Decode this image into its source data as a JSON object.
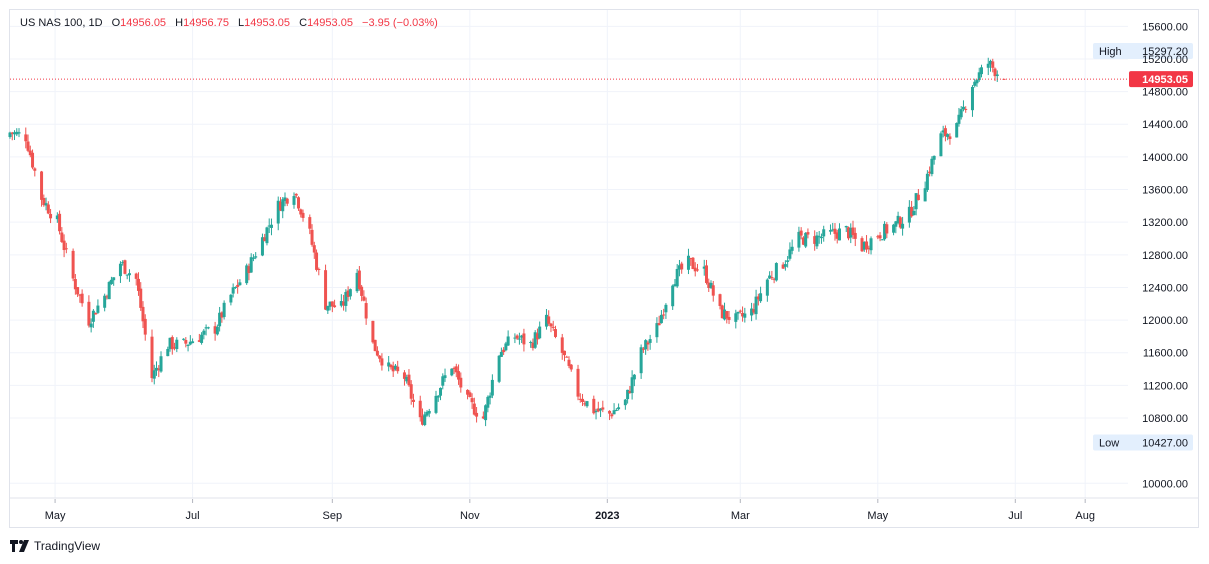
{
  "header": {
    "symbol": "US NAS 100, 1D",
    "open_label": "O",
    "open": "14956.05",
    "high_label": "H",
    "high": "14956.75",
    "low_label": "L",
    "low": "14953.05",
    "close_label": "C",
    "close": "14953.05",
    "change": "−3.95 (−0.03%)"
  },
  "price_axis": {
    "ticks": [
      "15600.00",
      "15200.00",
      "14800.00",
      "14400.00",
      "14000.00",
      "13600.00",
      "13200.00",
      "12800.00",
      "12400.00",
      "12000.00",
      "11600.00",
      "11200.00",
      "10800.00",
      "10000.00"
    ],
    "high_label": "High",
    "high_value": "15297.20",
    "low_label": "Low",
    "low_value": "10427.00",
    "last_price": "14953.05"
  },
  "time_axis": {
    "labels": [
      "May",
      "Jul",
      "Sep",
      "Nov",
      "2023",
      "Mar",
      "May",
      "Jul",
      "Aug"
    ]
  },
  "branding": {
    "logo_text": "TradingView"
  },
  "colors": {
    "up": "#26a69a",
    "down": "#ef5350",
    "last_price": "#f23645",
    "grid": "#f0f3fa"
  },
  "chart_data": {
    "type": "candlestick",
    "title": "US NAS 100, 1D",
    "ylim": [
      10000,
      15700
    ],
    "x_range": [
      "2022-04-11",
      "2023-08-20"
    ],
    "grid": true,
    "last": 14953.05,
    "high": 15297.2,
    "low": 10427.0,
    "keypoints": [
      [
        "2022-04-11",
        14300
      ],
      [
        "2022-04-18",
        14250
      ],
      [
        "2022-04-25",
        13500
      ],
      [
        "2022-05-02",
        13200
      ],
      [
        "2022-05-09",
        12500
      ],
      [
        "2022-05-16",
        12000
      ],
      [
        "2022-05-23",
        12300
      ],
      [
        "2022-05-30",
        12700
      ],
      [
        "2022-06-06",
        12500
      ],
      [
        "2022-06-13",
        11300
      ],
      [
        "2022-06-20",
        11700
      ],
      [
        "2022-06-27",
        11700
      ],
      [
        "2022-07-04",
        11800
      ],
      [
        "2022-07-11",
        11900
      ],
      [
        "2022-07-18",
        12300
      ],
      [
        "2022-07-25",
        12600
      ],
      [
        "2022-08-01",
        13000
      ],
      [
        "2022-08-08",
        13400
      ],
      [
        "2022-08-15",
        13600
      ],
      [
        "2022-08-22",
        13050
      ],
      [
        "2022-08-29",
        12200
      ],
      [
        "2022-09-05",
        12150
      ],
      [
        "2022-09-12",
        12600
      ],
      [
        "2022-09-19",
        11700
      ],
      [
        "2022-09-26",
        11400
      ],
      [
        "2022-10-03",
        11300
      ],
      [
        "2022-10-10",
        10750
      ],
      [
        "2022-10-17",
        11100
      ],
      [
        "2022-10-24",
        11450
      ],
      [
        "2022-10-31",
        11000
      ],
      [
        "2022-11-07",
        10800
      ],
      [
        "2022-11-14",
        11600
      ],
      [
        "2022-11-21",
        11800
      ],
      [
        "2022-11-28",
        11700
      ],
      [
        "2022-12-05",
        12000
      ],
      [
        "2022-12-12",
        11600
      ],
      [
        "2022-12-19",
        11100
      ],
      [
        "2022-12-26",
        10900
      ],
      [
        "2023-01-02",
        10850
      ],
      [
        "2023-01-09",
        11000
      ],
      [
        "2023-01-16",
        11600
      ],
      [
        "2023-01-23",
        11900
      ],
      [
        "2023-01-30",
        12500
      ],
      [
        "2023-02-06",
        12700
      ],
      [
        "2023-02-13",
        12600
      ],
      [
        "2023-02-20",
        12100
      ],
      [
        "2023-02-27",
        12000
      ],
      [
        "2023-03-06",
        12100
      ],
      [
        "2023-03-13",
        12500
      ],
      [
        "2023-03-20",
        12700
      ],
      [
        "2023-03-27",
        13000
      ],
      [
        "2023-04-03",
        13000
      ],
      [
        "2023-04-10",
        13050
      ],
      [
        "2023-04-17",
        13100
      ],
      [
        "2023-04-24",
        12900
      ],
      [
        "2023-05-01",
        13050
      ],
      [
        "2023-05-08",
        13150
      ],
      [
        "2023-05-15",
        13300
      ],
      [
        "2023-05-22",
        13700
      ],
      [
        "2023-05-29",
        14250
      ],
      [
        "2023-06-05",
        14350
      ],
      [
        "2023-06-12",
        14900
      ],
      [
        "2023-06-19",
        15150
      ],
      [
        "2023-06-26",
        14950
      ]
    ]
  }
}
